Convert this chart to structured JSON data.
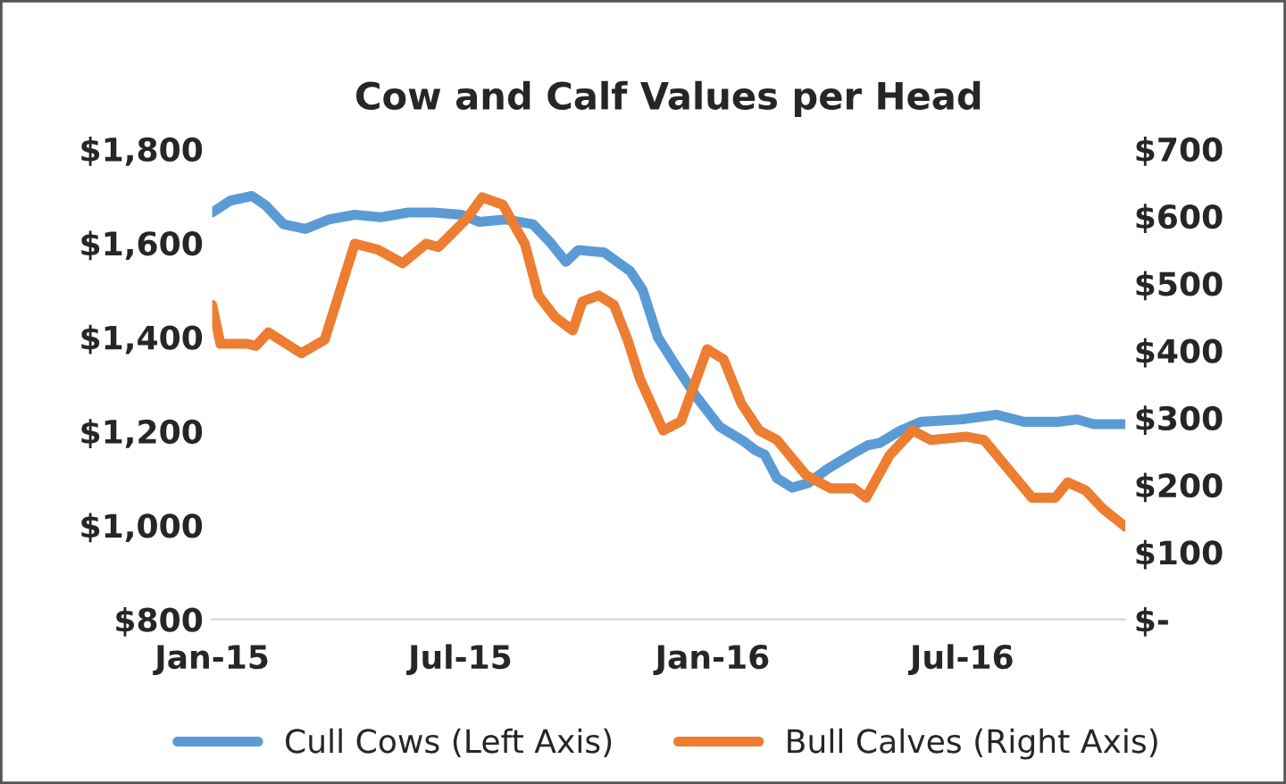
{
  "chart_data": {
    "type": "line",
    "title": "Cow and Calf Values per Head",
    "legend": "bottom",
    "grid": false,
    "xlim": [
      "2015-01-01",
      "2016-10-28"
    ],
    "xticks": [
      {
        "value": "2015-01-01",
        "label": "Jan-15"
      },
      {
        "value": "2015-07-01",
        "label": "Jul-15"
      },
      {
        "value": "2016-01-01",
        "label": "Jan-16"
      },
      {
        "value": "2016-07-01",
        "label": "Jul-16"
      }
    ],
    "ylim": [
      800,
      1800
    ],
    "yticks": [
      {
        "value": 800,
        "label": "$800"
      },
      {
        "value": 1000,
        "label": "$1,000"
      },
      {
        "value": 1200,
        "label": "$1,200"
      },
      {
        "value": 1400,
        "label": "$1,400"
      },
      {
        "value": 1600,
        "label": "$1,600"
      },
      {
        "value": 1800,
        "label": "$1,800"
      }
    ],
    "y2lim": [
      0,
      700
    ],
    "y2ticks": [
      {
        "value": 0,
        "label": "$-"
      },
      {
        "value": 100,
        "label": "$100"
      },
      {
        "value": 200,
        "label": "$200"
      },
      {
        "value": 300,
        "label": "$300"
      },
      {
        "value": 400,
        "label": "$400"
      },
      {
        "value": 500,
        "label": "$500"
      },
      {
        "value": 600,
        "label": "$600"
      },
      {
        "value": 700,
        "label": "$700"
      }
    ],
    "series": [
      {
        "name": "Cull Cows (Left Axis)",
        "color": "#5b9bd5",
        "x": [
          "2015-01-01",
          "2015-01-14",
          "2015-01-30",
          "2015-02-09",
          "2015-02-22",
          "2015-03-10",
          "2015-03-27",
          "2015-04-15",
          "2015-05-04",
          "2015-05-24",
          "2015-06-12",
          "2015-07-02",
          "2015-07-15",
          "2015-08-03",
          "2015-08-23",
          "2015-09-05",
          "2015-09-16",
          "2015-09-25",
          "2015-10-14",
          "2015-11-02",
          "2015-11-11",
          "2015-11-22",
          "2015-12-05",
          "2015-12-21",
          "2016-01-06",
          "2016-01-23",
          "2016-02-01",
          "2016-02-08",
          "2016-02-17",
          "2016-02-28",
          "2016-03-11",
          "2016-03-25",
          "2016-04-11",
          "2016-04-23",
          "2016-05-02",
          "2016-05-16",
          "2016-06-01",
          "2016-06-30",
          "2016-07-26",
          "2016-08-15",
          "2016-09-09",
          "2016-09-23",
          "2016-10-05",
          "2016-10-28"
        ],
        "values": [
          1665,
          1690,
          1700,
          1680,
          1640,
          1630,
          1650,
          1660,
          1655,
          1665,
          1665,
          1660,
          1645,
          1650,
          1640,
          1600,
          1560,
          1585,
          1580,
          1540,
          1500,
          1400,
          1340,
          1270,
          1210,
          1180,
          1160,
          1150,
          1100,
          1080,
          1090,
          1120,
          1150,
          1170,
          1175,
          1200,
          1220,
          1225,
          1235,
          1220,
          1220,
          1225,
          1215,
          1215
        ]
      },
      {
        "name": "Bull Calves (Right Axis)",
        "color": "#ed7d31",
        "axis": "y2",
        "x": [
          "2015-01-01",
          "2015-01-07",
          "2015-01-27",
          "2015-02-02",
          "2015-02-11",
          "2015-03-07",
          "2015-03-24",
          "2015-04-15",
          "2015-05-02",
          "2015-05-20",
          "2015-06-06",
          "2015-06-15",
          "2015-07-06",
          "2015-07-17",
          "2015-08-01",
          "2015-08-17",
          "2015-08-27",
          "2015-09-08",
          "2015-09-21",
          "2015-09-28",
          "2015-10-10",
          "2015-10-21",
          "2015-10-31",
          "2015-11-09",
          "2015-11-26",
          "2015-12-09",
          "2015-12-28",
          "2016-01-09",
          "2016-01-22",
          "2016-02-04",
          "2016-02-17",
          "2016-03-09",
          "2016-03-27",
          "2016-04-13",
          "2016-04-22",
          "2016-05-09",
          "2016-05-26",
          "2016-06-08",
          "2016-07-04",
          "2016-07-17",
          "2016-07-30",
          "2016-08-21",
          "2016-09-07",
          "2016-09-16",
          "2016-09-29",
          "2016-10-12",
          "2016-10-28"
        ],
        "values": [
          468,
          410,
          410,
          407,
          427,
          396,
          416,
          559,
          550,
          530,
          559,
          554,
          597,
          628,
          617,
          559,
          482,
          450,
          430,
          473,
          482,
          468,
          416,
          358,
          281,
          295,
          402,
          387,
          321,
          281,
          267,
          215,
          195,
          195,
          181,
          244,
          281,
          267,
          272,
          267,
          235,
          181,
          181,
          204,
          192,
          164,
          138
        ]
      }
    ]
  }
}
